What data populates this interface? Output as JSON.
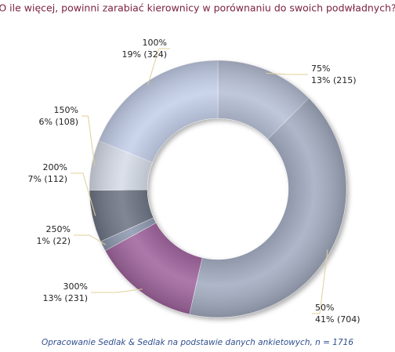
{
  "chart_data": {
    "type": "donut",
    "title": "O ile więcej, powinni zarabiać kierownicy w porównaniu do swoich podwładnych?",
    "categories": [
      "75%",
      "50%",
      "300%",
      "250%",
      "200%",
      "150%",
      "100%"
    ],
    "values": [
      215,
      704,
      231,
      22,
      112,
      108,
      324
    ],
    "value_labels": [
      "13% (215)",
      "41% (704)",
      "13% (231)",
      "1% (22)",
      "7% (112)",
      "6% (108)",
      "19% (324)"
    ],
    "colors": [
      "#b7c0d6",
      "#a3acc1",
      "#a1669f",
      "#8f9ab1",
      "#6f7686",
      "#d6dce8",
      "#c4cfe9"
    ],
    "note": "Opracowanie Sedlak & Sedlak na podstawie danych ankietowych, n = 1716"
  }
}
